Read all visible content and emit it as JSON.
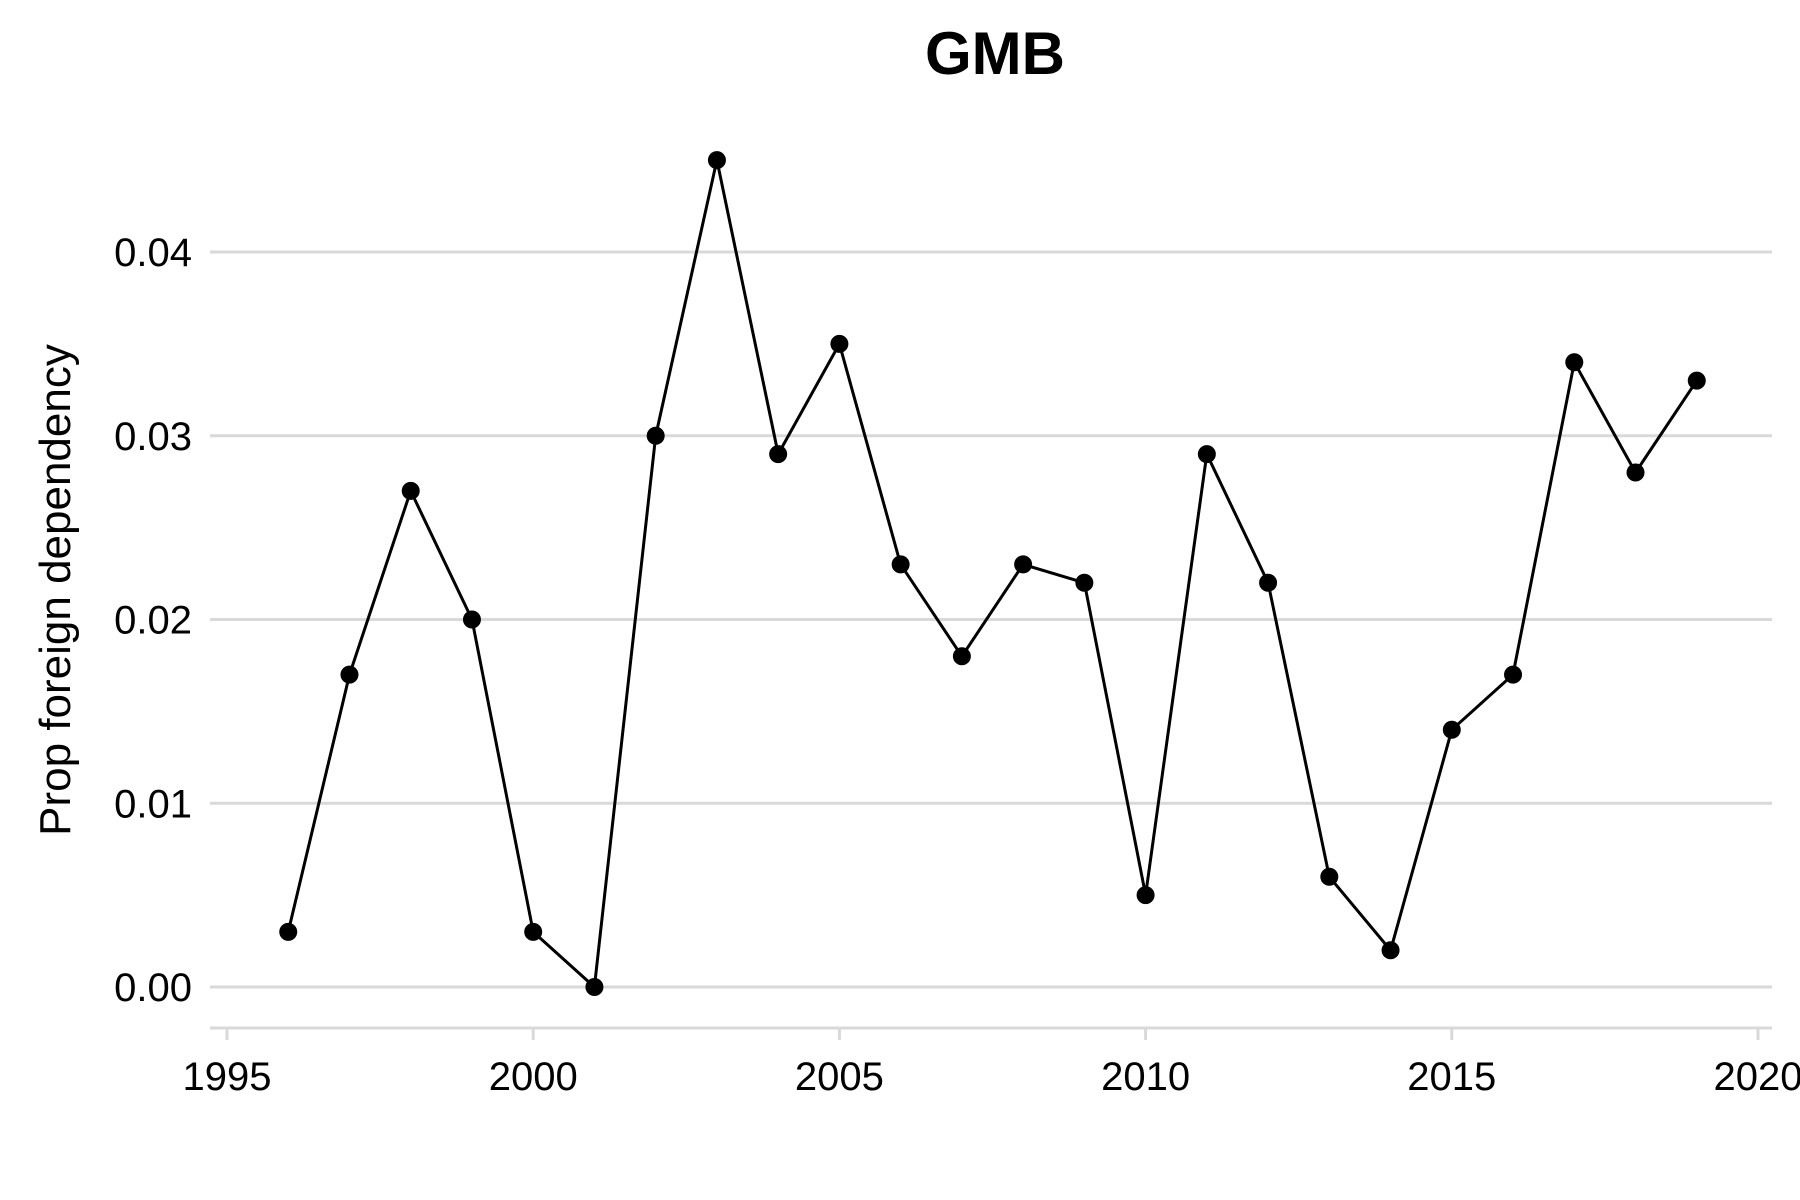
{
  "chart_data": {
    "type": "line",
    "title": "GMB",
    "xlabel": "",
    "ylabel": "Prop foreign dependency",
    "xlim": [
      1995,
      2020
    ],
    "ylim": [
      0,
      0.045
    ],
    "x_ticks": [
      "1995",
      "2000",
      "2005",
      "2010",
      "2015",
      "2020"
    ],
    "y_ticks": [
      "0.00",
      "0.01",
      "0.02",
      "0.03",
      "0.04"
    ],
    "grid": "horizontal",
    "legend": "none",
    "series": [
      {
        "color": "#000000",
        "x": [
          1996,
          1997,
          1998,
          1999,
          2000,
          2001,
          2002,
          2003,
          2004,
          2005,
          2006,
          2007,
          2008,
          2009,
          2010,
          2011,
          2012,
          2013,
          2014,
          2015,
          2016,
          2017,
          2018,
          2019
        ],
        "y": [
          0.003,
          0.017,
          0.027,
          0.02,
          0.003,
          0.0,
          0.03,
          0.045,
          0.029,
          0.035,
          0.023,
          0.018,
          0.023,
          0.022,
          0.005,
          0.029,
          0.022,
          0.006,
          0.002,
          0.014,
          0.017,
          0.034,
          0.028,
          0.033
        ]
      }
    ]
  }
}
